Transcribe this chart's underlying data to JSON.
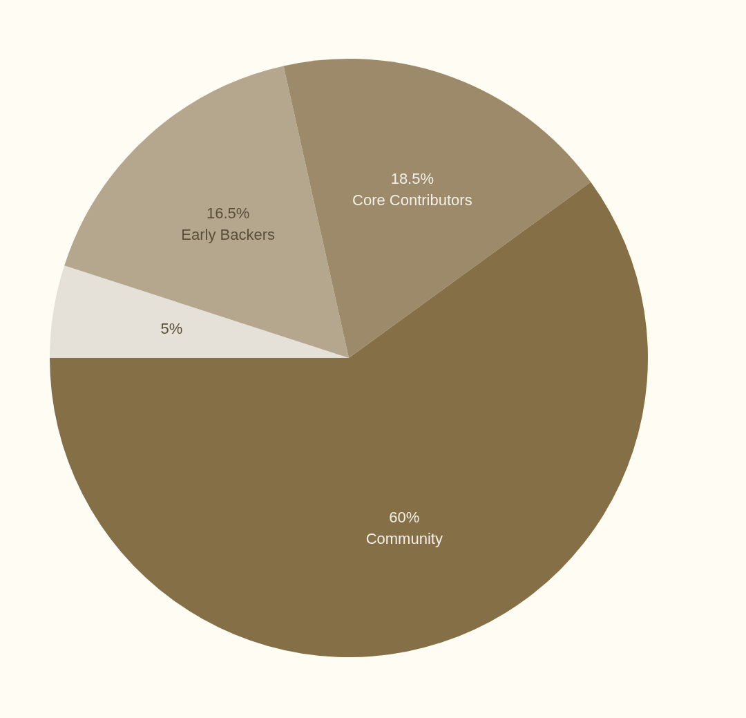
{
  "chart_data": {
    "type": "pie",
    "categories": [
      null,
      "Early Backers",
      "Core Contributors",
      "Community"
    ],
    "values": [
      5,
      16.5,
      18.5,
      60
    ],
    "value_labels": [
      "5%",
      "16.5%",
      "18.5%",
      "60%"
    ],
    "colors": [
      "#e5e1d8",
      "#b4a78e",
      "#9c8a6a",
      "#846f47"
    ],
    "legend": false
  }
}
